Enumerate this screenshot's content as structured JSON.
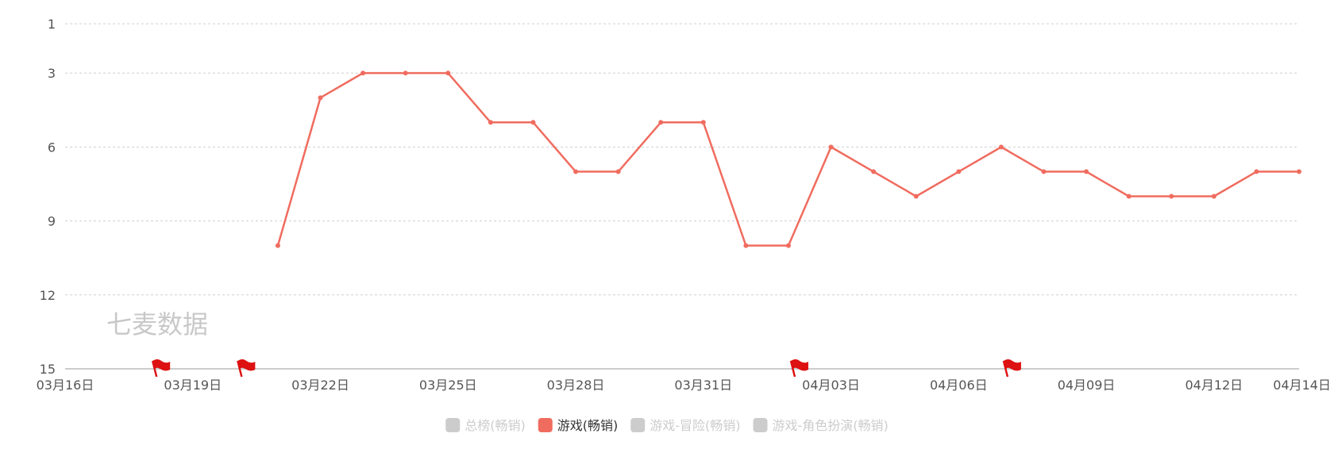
{
  "chart_data": {
    "type": "line",
    "title": "",
    "xlabel": "",
    "ylabel": "",
    "y_inverted": true,
    "ylim": [
      1,
      15
    ],
    "y_ticks": [
      "1",
      "3",
      "6",
      "9",
      "12",
      "15"
    ],
    "y_tick_values": [
      1,
      3,
      6,
      9,
      12,
      15
    ],
    "x_tick_labels": [
      "03月16日",
      "03月19日",
      "03月22日",
      "03月25日",
      "03月28日",
      "03月31日",
      "04月03日",
      "04月06日",
      "04月09日",
      "04月12日",
      "04月14日"
    ],
    "x_tick_days": [
      0,
      3,
      6,
      9,
      12,
      15,
      18,
      21,
      24,
      27,
      29
    ],
    "x_range_days": [
      0,
      29
    ],
    "grid": "horizontal-dashed",
    "legend_position": "bottom-center",
    "series": [
      {
        "name": "总榜(畅销)",
        "color": "#cccccc",
        "active": false,
        "x_days": [],
        "values": []
      },
      {
        "name": "游戏(畅销)",
        "color": "#f06c5f",
        "active": true,
        "x_days": [
          5,
          6,
          7,
          8,
          9,
          10,
          11,
          12,
          13,
          14,
          15,
          16,
          17,
          18,
          19,
          20,
          21,
          22,
          23,
          24,
          25,
          26,
          27,
          28,
          29
        ],
        "values": [
          10,
          4,
          3,
          3,
          3,
          5,
          5,
          7,
          7,
          5,
          5,
          10,
          10,
          6,
          7,
          8,
          7,
          6,
          7,
          7,
          8,
          8,
          8,
          7,
          7
        ]
      },
      {
        "name": "游戏-冒险(畅销)",
        "color": "#cccccc",
        "active": false,
        "x_days": [],
        "values": []
      },
      {
        "name": "游戏-角色扮演(畅销)",
        "color": "#cccccc",
        "active": false,
        "x_days": [],
        "values": []
      }
    ],
    "event_flags_days": [
      2,
      4,
      17,
      22
    ]
  },
  "watermark": "七麦数据",
  "legend_inactive_color": "#cccccc",
  "legend_active_text_color": "#333333",
  "flag_color": "#dd1111"
}
